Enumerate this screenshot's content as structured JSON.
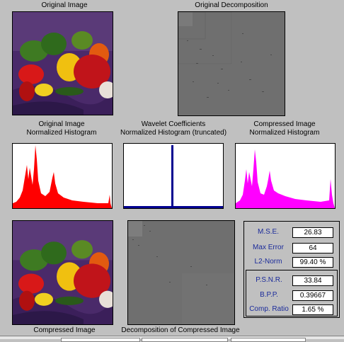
{
  "labels": {
    "original_image": "Original Image",
    "original_decomposition": "Original Decomposition",
    "hist_original_l1": "Original Image",
    "hist_original_l2": "Normalized Histogram",
    "hist_wavelet_l1": "Wavelet Coefficients",
    "hist_wavelet_l2": "Normalized Histogram (truncated)",
    "hist_compressed_l1": "Compressed Image",
    "hist_compressed_l2": "Normalized Histogram",
    "compressed_image": "Compressed Image",
    "decomp_compressed": "Decomposition of Compressed Image"
  },
  "metrics": {
    "mse_label": "M.S.E.",
    "mse_value": "26.83",
    "max_error_label": "Max Error",
    "max_error_value": "64",
    "l2_norm_label": "L2-Norm",
    "l2_norm_value": "99.40 %",
    "psnr_label": "P.S.N.R.",
    "psnr_value": "33.84",
    "bpp_label": "B.P.P.",
    "bpp_value": "0.39667",
    "comp_ratio_label": "Comp. Ratio",
    "comp_ratio_value": "1.65 %"
  },
  "colors": {
    "hist_original": "#ff0000",
    "hist_wavelet": "#000090",
    "hist_compressed": "#ff00ff",
    "metric_label": "#1a2a9a"
  }
}
